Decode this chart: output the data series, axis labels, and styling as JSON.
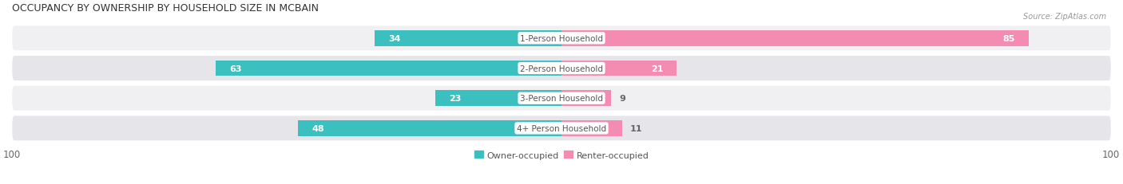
{
  "title": "OCCUPANCY BY OWNERSHIP BY HOUSEHOLD SIZE IN MCBAIN",
  "source": "Source: ZipAtlas.com",
  "categories": [
    "1-Person Household",
    "2-Person Household",
    "3-Person Household",
    "4+ Person Household"
  ],
  "owner_values": [
    34,
    63,
    23,
    48
  ],
  "renter_values": [
    85,
    21,
    9,
    11
  ],
  "owner_color": "#3bbfbf",
  "renter_color": "#f48cb1",
  "row_bg_light": "#f0f0f2",
  "row_bg_dark": "#e6e6ea",
  "axis_max": 100,
  "label_color_white": "#ffffff",
  "label_color_dark": "#666666",
  "center_label_bg": "#ffffff",
  "center_label_color": "#555555",
  "title_fontsize": 9,
  "bar_label_fontsize": 8,
  "tick_fontsize": 8.5,
  "legend_fontsize": 8,
  "background_color": "#ffffff",
  "row_border_color": "#d8d8de"
}
